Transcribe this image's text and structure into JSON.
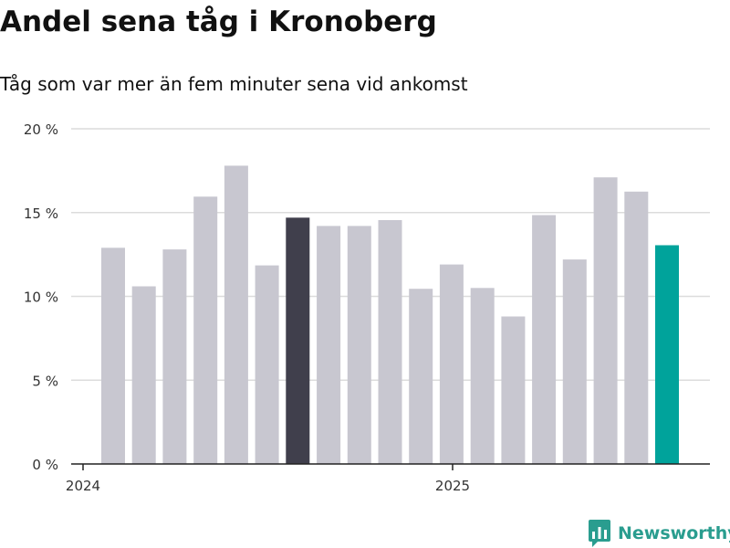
{
  "chart_data": {
    "type": "bar",
    "title": "Andel sena tåg i Kronoberg",
    "subtitle": "Tåg som var mer än fem minuter sena vid ankomst",
    "ylim": [
      0,
      20
    ],
    "yticks": [
      "0 %",
      "5 %",
      "10 %",
      "15 %",
      "20 %"
    ],
    "ytick_values": [
      0,
      5,
      10,
      15,
      20
    ],
    "xticks": [
      "2024",
      "2025"
    ],
    "grid": true,
    "values": [
      12.9,
      10.6,
      12.8,
      15.95,
      17.8,
      11.85,
      14.7,
      14.2,
      14.2,
      14.55,
      10.45,
      11.9,
      10.5,
      8.8,
      14.85,
      12.2,
      17.1,
      16.25,
      13.05
    ],
    "highlight_dark_index": 6,
    "highlight_accent_index": 18,
    "colors": {
      "bar": "#c8c7d0",
      "dark": "#403f4c",
      "accent": "#00a39b",
      "grid": "#dcdcdc",
      "axis": "#222222"
    }
  },
  "brand": {
    "name": "Newsworthy",
    "icon": "newsworthy-logo-icon"
  }
}
